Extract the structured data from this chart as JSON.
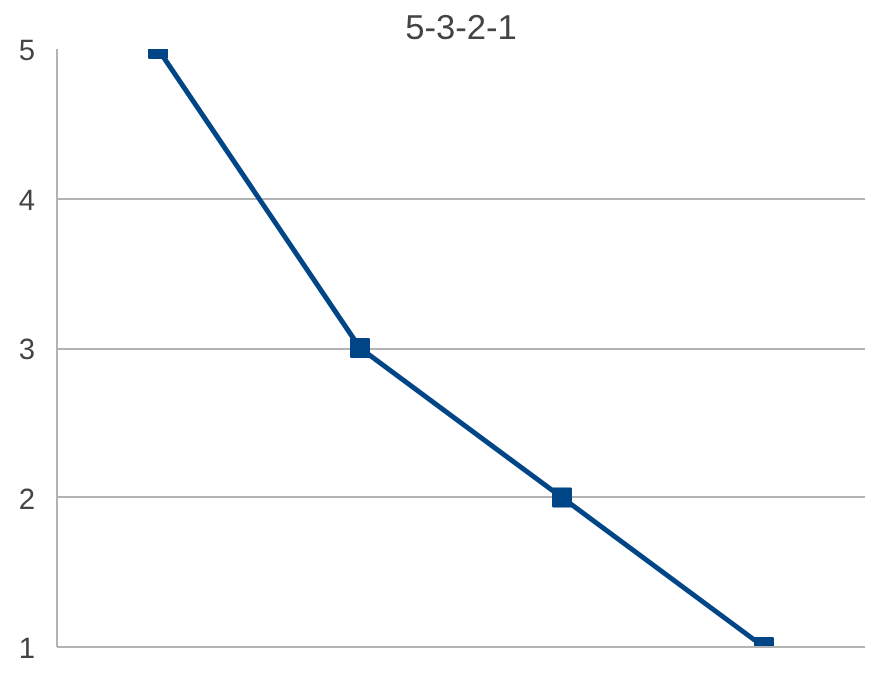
{
  "chart_data": {
    "type": "line",
    "title": "5-3-2-1",
    "categories": [
      null,
      null,
      null,
      null
    ],
    "series": [
      {
        "color": "#004586",
        "values": [
          5,
          3,
          2,
          1
        ]
      }
    ],
    "ylim": [
      1,
      5
    ],
    "yticks": [
      1,
      2,
      3,
      4,
      5
    ],
    "grid": "y",
    "marker": "square",
    "line_style": "solid"
  }
}
